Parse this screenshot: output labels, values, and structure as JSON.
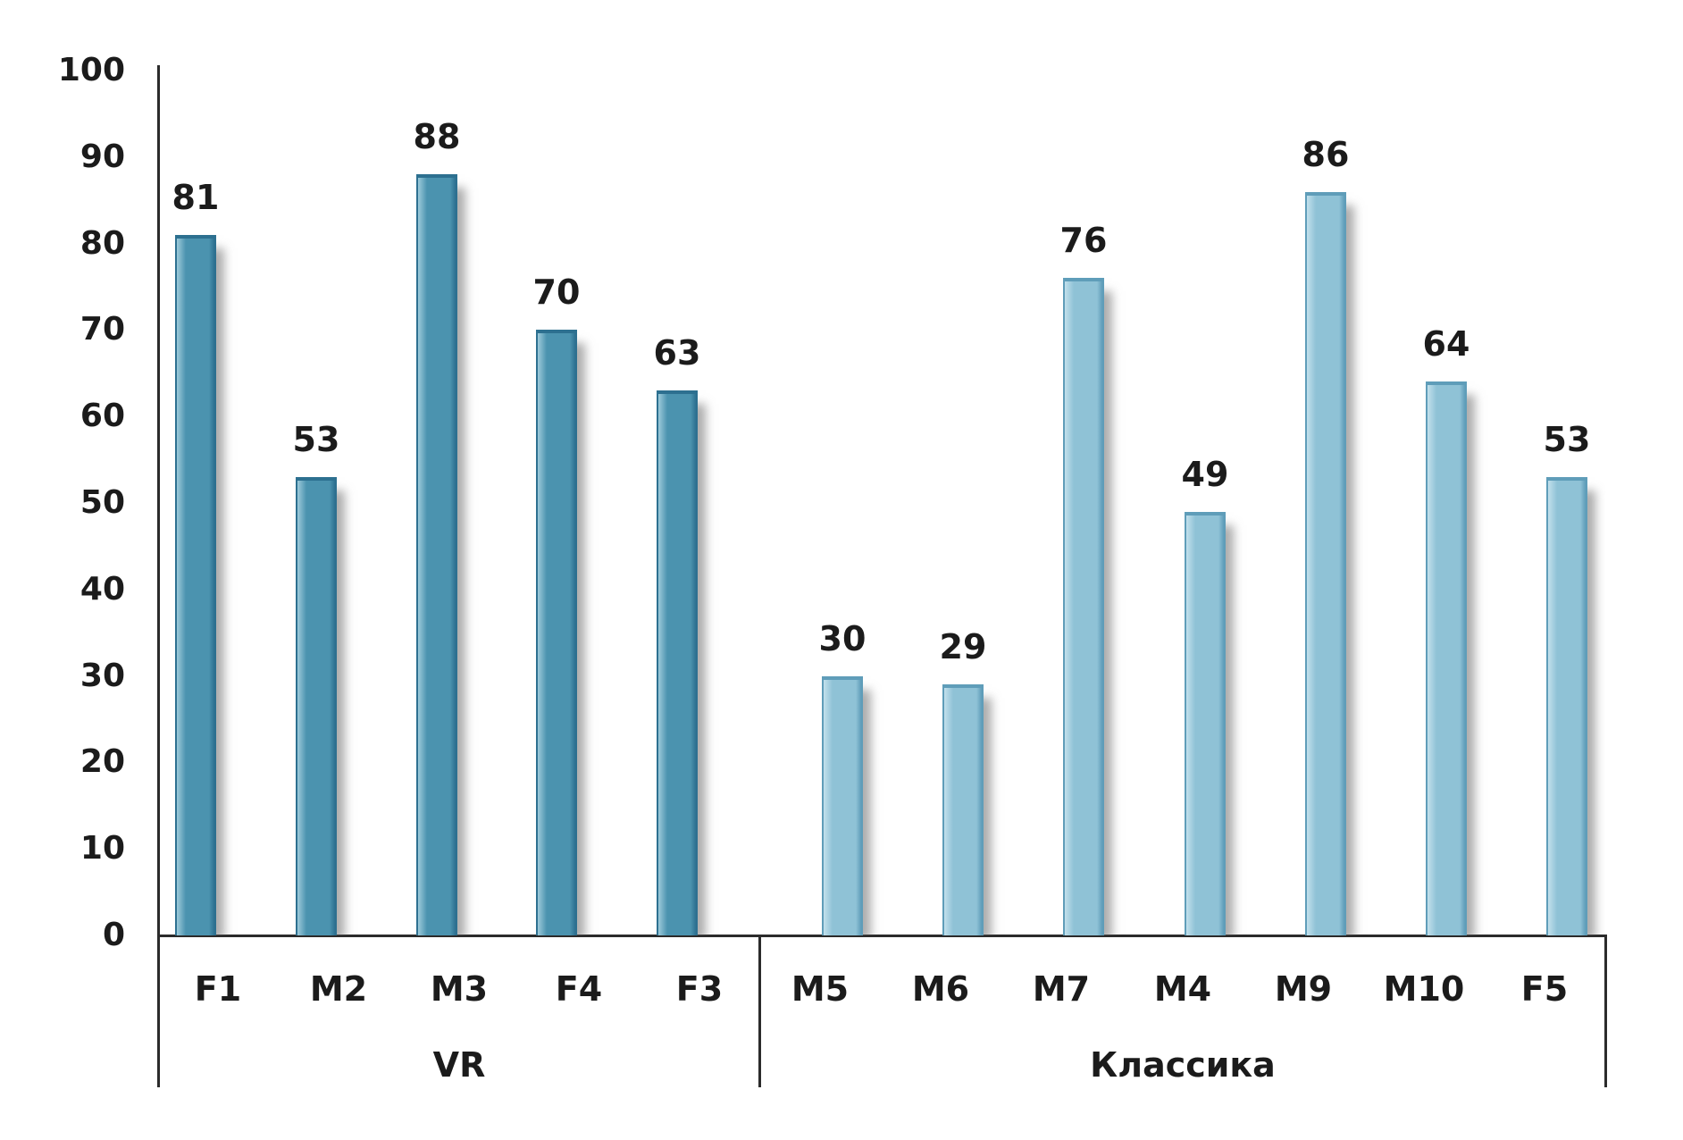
{
  "chart_data": {
    "type": "bar",
    "title": "",
    "xlabel": "",
    "ylabel": "",
    "ylim": [
      0,
      100
    ],
    "ytick_step": 10,
    "yticks": [
      "0",
      "10",
      "20",
      "30",
      "40",
      "50",
      "60",
      "70",
      "80",
      "90",
      "100"
    ],
    "grid": false,
    "legend": "none",
    "value_labels_shown": true,
    "groups": [
      {
        "label": "VR",
        "categories": [
          "F1",
          "M2",
          "M3",
          "F4",
          "F3"
        ],
        "values": [
          81,
          53,
          88,
          70,
          63
        ],
        "value_labels": [
          "81",
          "53",
          "88",
          "70",
          "63"
        ],
        "bar_fill": "#4b93af",
        "bar_highlight": "#9ccada",
        "bar_edge": "#2d7090"
      },
      {
        "label": "Классика",
        "categories": [
          "M5",
          "M6",
          "M7",
          "M4",
          "M9",
          "M10",
          "F5"
        ],
        "values": [
          30,
          29,
          76,
          49,
          86,
          64,
          53
        ],
        "value_labels": [
          "30",
          "29",
          "76",
          "49",
          "86",
          "64",
          "53"
        ],
        "bar_fill": "#8fc2d6",
        "bar_highlight": "#c2e0ec",
        "bar_edge": "#5f9db9"
      }
    ],
    "colors": {
      "axis": "#2b2b2b",
      "text": "#1b1b1b",
      "background": "#ffffff",
      "shadow": "rgba(105,105,105,0.55)"
    }
  }
}
